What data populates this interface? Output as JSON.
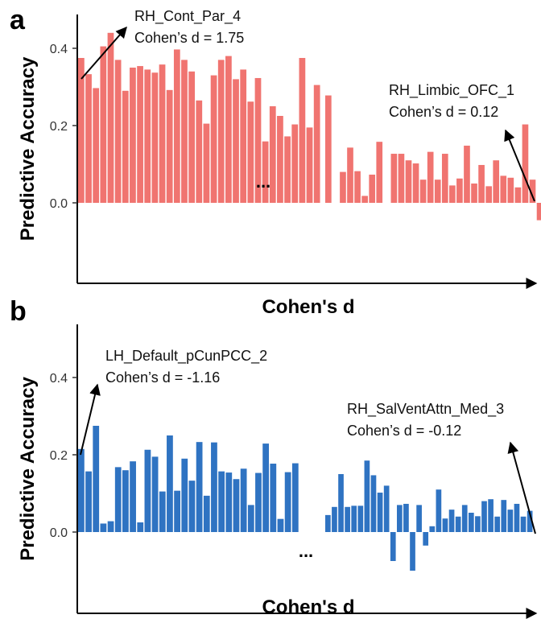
{
  "chart_data": [
    {
      "panel": "a",
      "type": "bar",
      "color": "#f07470",
      "xlabel": "Cohen's d",
      "ylabel": "Predictive Accuracy",
      "ylim": [
        -0.21,
        0.53
      ],
      "yticks": [
        0.0,
        0.2,
        0.4
      ],
      "ytick_labels": [
        "0.0",
        "0.2",
        "0.4"
      ],
      "gap_label": "...",
      "grid": false,
      "series": [
        {
          "values": [
            0.375,
            0.333,
            0.297,
            0.405,
            0.44,
            0.37,
            0.29,
            0.35,
            0.354,
            0.345,
            0.337,
            0.358,
            0.292,
            0.397,
            0.37,
            0.34,
            0.265,
            0.205,
            0.33,
            0.37,
            0.38,
            0.32,
            0.345,
            0.262,
            0.323,
            0.159,
            0.25,
            0.225,
            0.172,
            0.203,
            0.375,
            0.195,
            0.305
          ]
        },
        {
          "values": [
            0.278,
            0.0,
            0.08,
            0.143,
            0.082,
            0.018,
            0.073,
            0.158,
            0.0,
            0.127,
            0.127,
            0.11,
            0.102,
            0.06,
            0.132,
            0.06,
            0.127,
            0.045,
            0.063,
            0.148,
            0.05,
            0.098,
            0.043,
            0.11,
            0.07,
            0.065,
            0.04,
            0.203,
            0.06,
            -0.045,
            0.05,
            0.118,
            0.048,
            0.146,
            0.057
          ]
        }
      ],
      "annotations": [
        {
          "line1": "RH_Cont_Par_4",
          "line2": "Cohen’s d = 1.75"
        },
        {
          "line1": "RH_Limbic_OFC_1",
          "line2": "Cohen’s d = 0.12"
        }
      ]
    },
    {
      "panel": "b",
      "type": "bar",
      "color": "#2f73c2",
      "xlabel": "Cohen's d",
      "ylabel": "Predictive Accuracy",
      "ylim": [
        -0.21,
        0.53
      ],
      "yticks": [
        0.0,
        0.2,
        0.4
      ],
      "ytick_labels": [
        "0.0",
        "0.2",
        "0.4"
      ],
      "gap_label": "...",
      "grid": false,
      "series": [
        {
          "values": [
            0.215,
            0.157,
            0.275,
            0.022,
            0.028,
            0.168,
            0.16,
            0.183,
            0.025,
            0.213,
            0.195,
            0.105,
            0.25,
            0.107,
            0.19,
            0.133,
            0.233,
            0.094,
            0.232,
            0.157,
            0.154,
            0.137,
            0.164,
            0.07,
            0.153,
            0.229,
            0.177,
            0.034,
            0.155,
            0.178
          ]
        },
        {
          "values": [
            0.044,
            0.065,
            0.15,
            0.065,
            0.068,
            0.068,
            0.185,
            0.147,
            0.102,
            0.12,
            -0.075,
            0.07,
            0.073,
            -0.1,
            0.07,
            -0.035,
            0.015,
            0.11,
            0.035,
            0.058,
            0.04,
            0.07,
            0.05,
            0.041,
            0.08,
            0.085,
            0.04,
            0.083,
            0.058,
            0.073,
            0.04,
            0.055
          ]
        }
      ],
      "annotations": [
        {
          "line1": "LH_Default_pCunPCC_2",
          "line2": "Cohen’s d = -1.16"
        },
        {
          "line1": "RH_SalVentAttn_Med_3",
          "line2": "Cohen’s d = -0.12"
        }
      ]
    }
  ]
}
